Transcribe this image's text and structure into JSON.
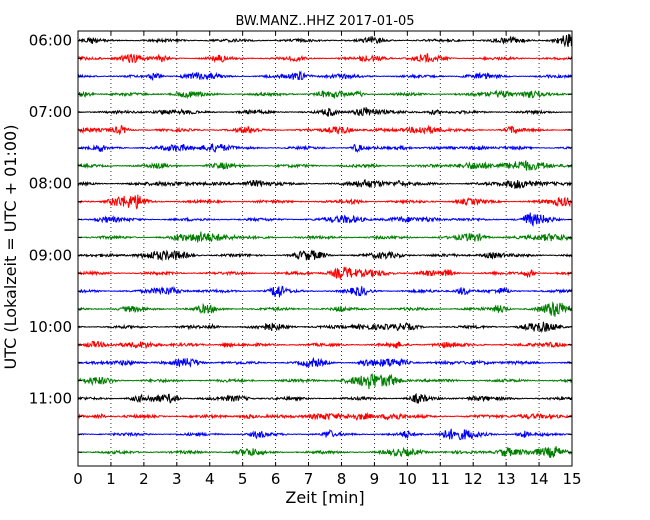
{
  "chart_data": {
    "type": "line",
    "title": "BW.MANZ..HHZ 2017-01-05",
    "xlabel": "Zeit  [min]",
    "ylabel": "UTC (Lokalzeit = UTC + 01:00)",
    "xlim": [
      0,
      15
    ],
    "x_ticks": [
      "0",
      "1",
      "2",
      "3",
      "4",
      "5",
      "6",
      "7",
      "8",
      "9",
      "10",
      "11",
      "12",
      "13",
      "14",
      "15"
    ],
    "y_tick_labels": [
      "06:00",
      "07:00",
      "08:00",
      "09:00",
      "10:00",
      "11:00"
    ],
    "grid": "vertical-dotted",
    "legend": "none",
    "trace_colors": [
      "#000000",
      "#ff0000",
      "#0000ff",
      "#007f00"
    ],
    "series": [
      {
        "start": "06:00",
        "color": "#000000"
      },
      {
        "start": "06:15",
        "color": "#ff0000"
      },
      {
        "start": "06:30",
        "color": "#0000ff"
      },
      {
        "start": "06:45",
        "color": "#007f00"
      },
      {
        "start": "07:00",
        "color": "#000000"
      },
      {
        "start": "07:15",
        "color": "#ff0000"
      },
      {
        "start": "07:30",
        "color": "#0000ff"
      },
      {
        "start": "07:45",
        "color": "#007f00"
      },
      {
        "start": "08:00",
        "color": "#000000"
      },
      {
        "start": "08:15",
        "color": "#ff0000"
      },
      {
        "start": "08:30",
        "color": "#0000ff"
      },
      {
        "start": "08:45",
        "color": "#007f00"
      },
      {
        "start": "09:00",
        "color": "#000000"
      },
      {
        "start": "09:15",
        "color": "#ff0000"
      },
      {
        "start": "09:30",
        "color": "#0000ff"
      },
      {
        "start": "09:45",
        "color": "#007f00"
      },
      {
        "start": "10:00",
        "color": "#000000"
      },
      {
        "start": "10:15",
        "color": "#ff0000"
      },
      {
        "start": "10:30",
        "color": "#0000ff"
      },
      {
        "start": "10:45",
        "color": "#007f00"
      },
      {
        "start": "11:00",
        "color": "#000000"
      },
      {
        "start": "11:15",
        "color": "#ff0000"
      },
      {
        "start": "11:30",
        "color": "#0000ff"
      },
      {
        "start": "11:45",
        "color": "#007f00"
      }
    ]
  }
}
